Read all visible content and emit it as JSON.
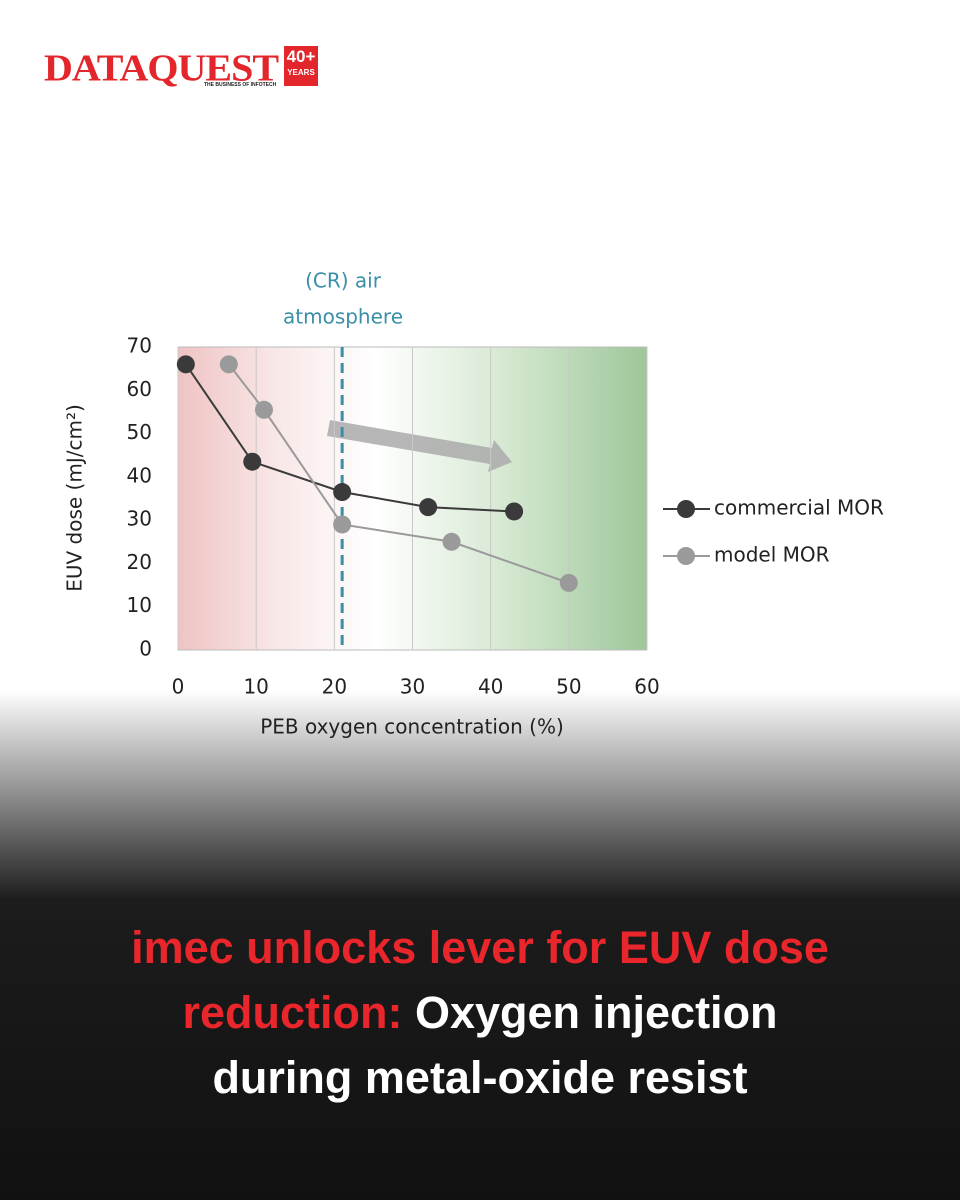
{
  "brand": {
    "name": "DATAQUEST",
    "badge": "40+",
    "badge_sub": "YEARS",
    "tagline": "THE BUSINESS OF INFOTECH"
  },
  "chart_data": {
    "type": "line",
    "xlabel": "PEB oxygen concentration (%)",
    "ylabel": "EUV dose (mJ/cm²)",
    "xlim": [
      0,
      60
    ],
    "xticks": [
      0,
      10,
      20,
      30,
      40,
      50,
      60
    ],
    "ylim": [
      0,
      70
    ],
    "yticks": [
      0,
      10,
      20,
      30,
      40,
      50,
      60,
      70
    ],
    "grid": true,
    "legend": "right",
    "annotation": {
      "lines": [
        "(CR) air",
        "atmosphere"
      ],
      "x": 21,
      "color": "#3a8fa8"
    },
    "series": [
      {
        "name": "commercial MOR",
        "color": "#3a3a3a",
        "x": [
          1,
          9.5,
          21,
          32,
          43
        ],
        "values": [
          66,
          43.5,
          36.5,
          33,
          32
        ]
      },
      {
        "name": "model MOR",
        "color": "#9a9a9a",
        "x": [
          6.5,
          11,
          21,
          35,
          50
        ],
        "values": [
          66,
          55.5,
          29,
          25,
          15.5
        ]
      }
    ]
  },
  "headline": {
    "red": [
      "imec unlocks lever for EUV dose",
      "reduction:"
    ],
    "white": [
      "Oxygen injection",
      "during metal-oxide resist"
    ]
  }
}
